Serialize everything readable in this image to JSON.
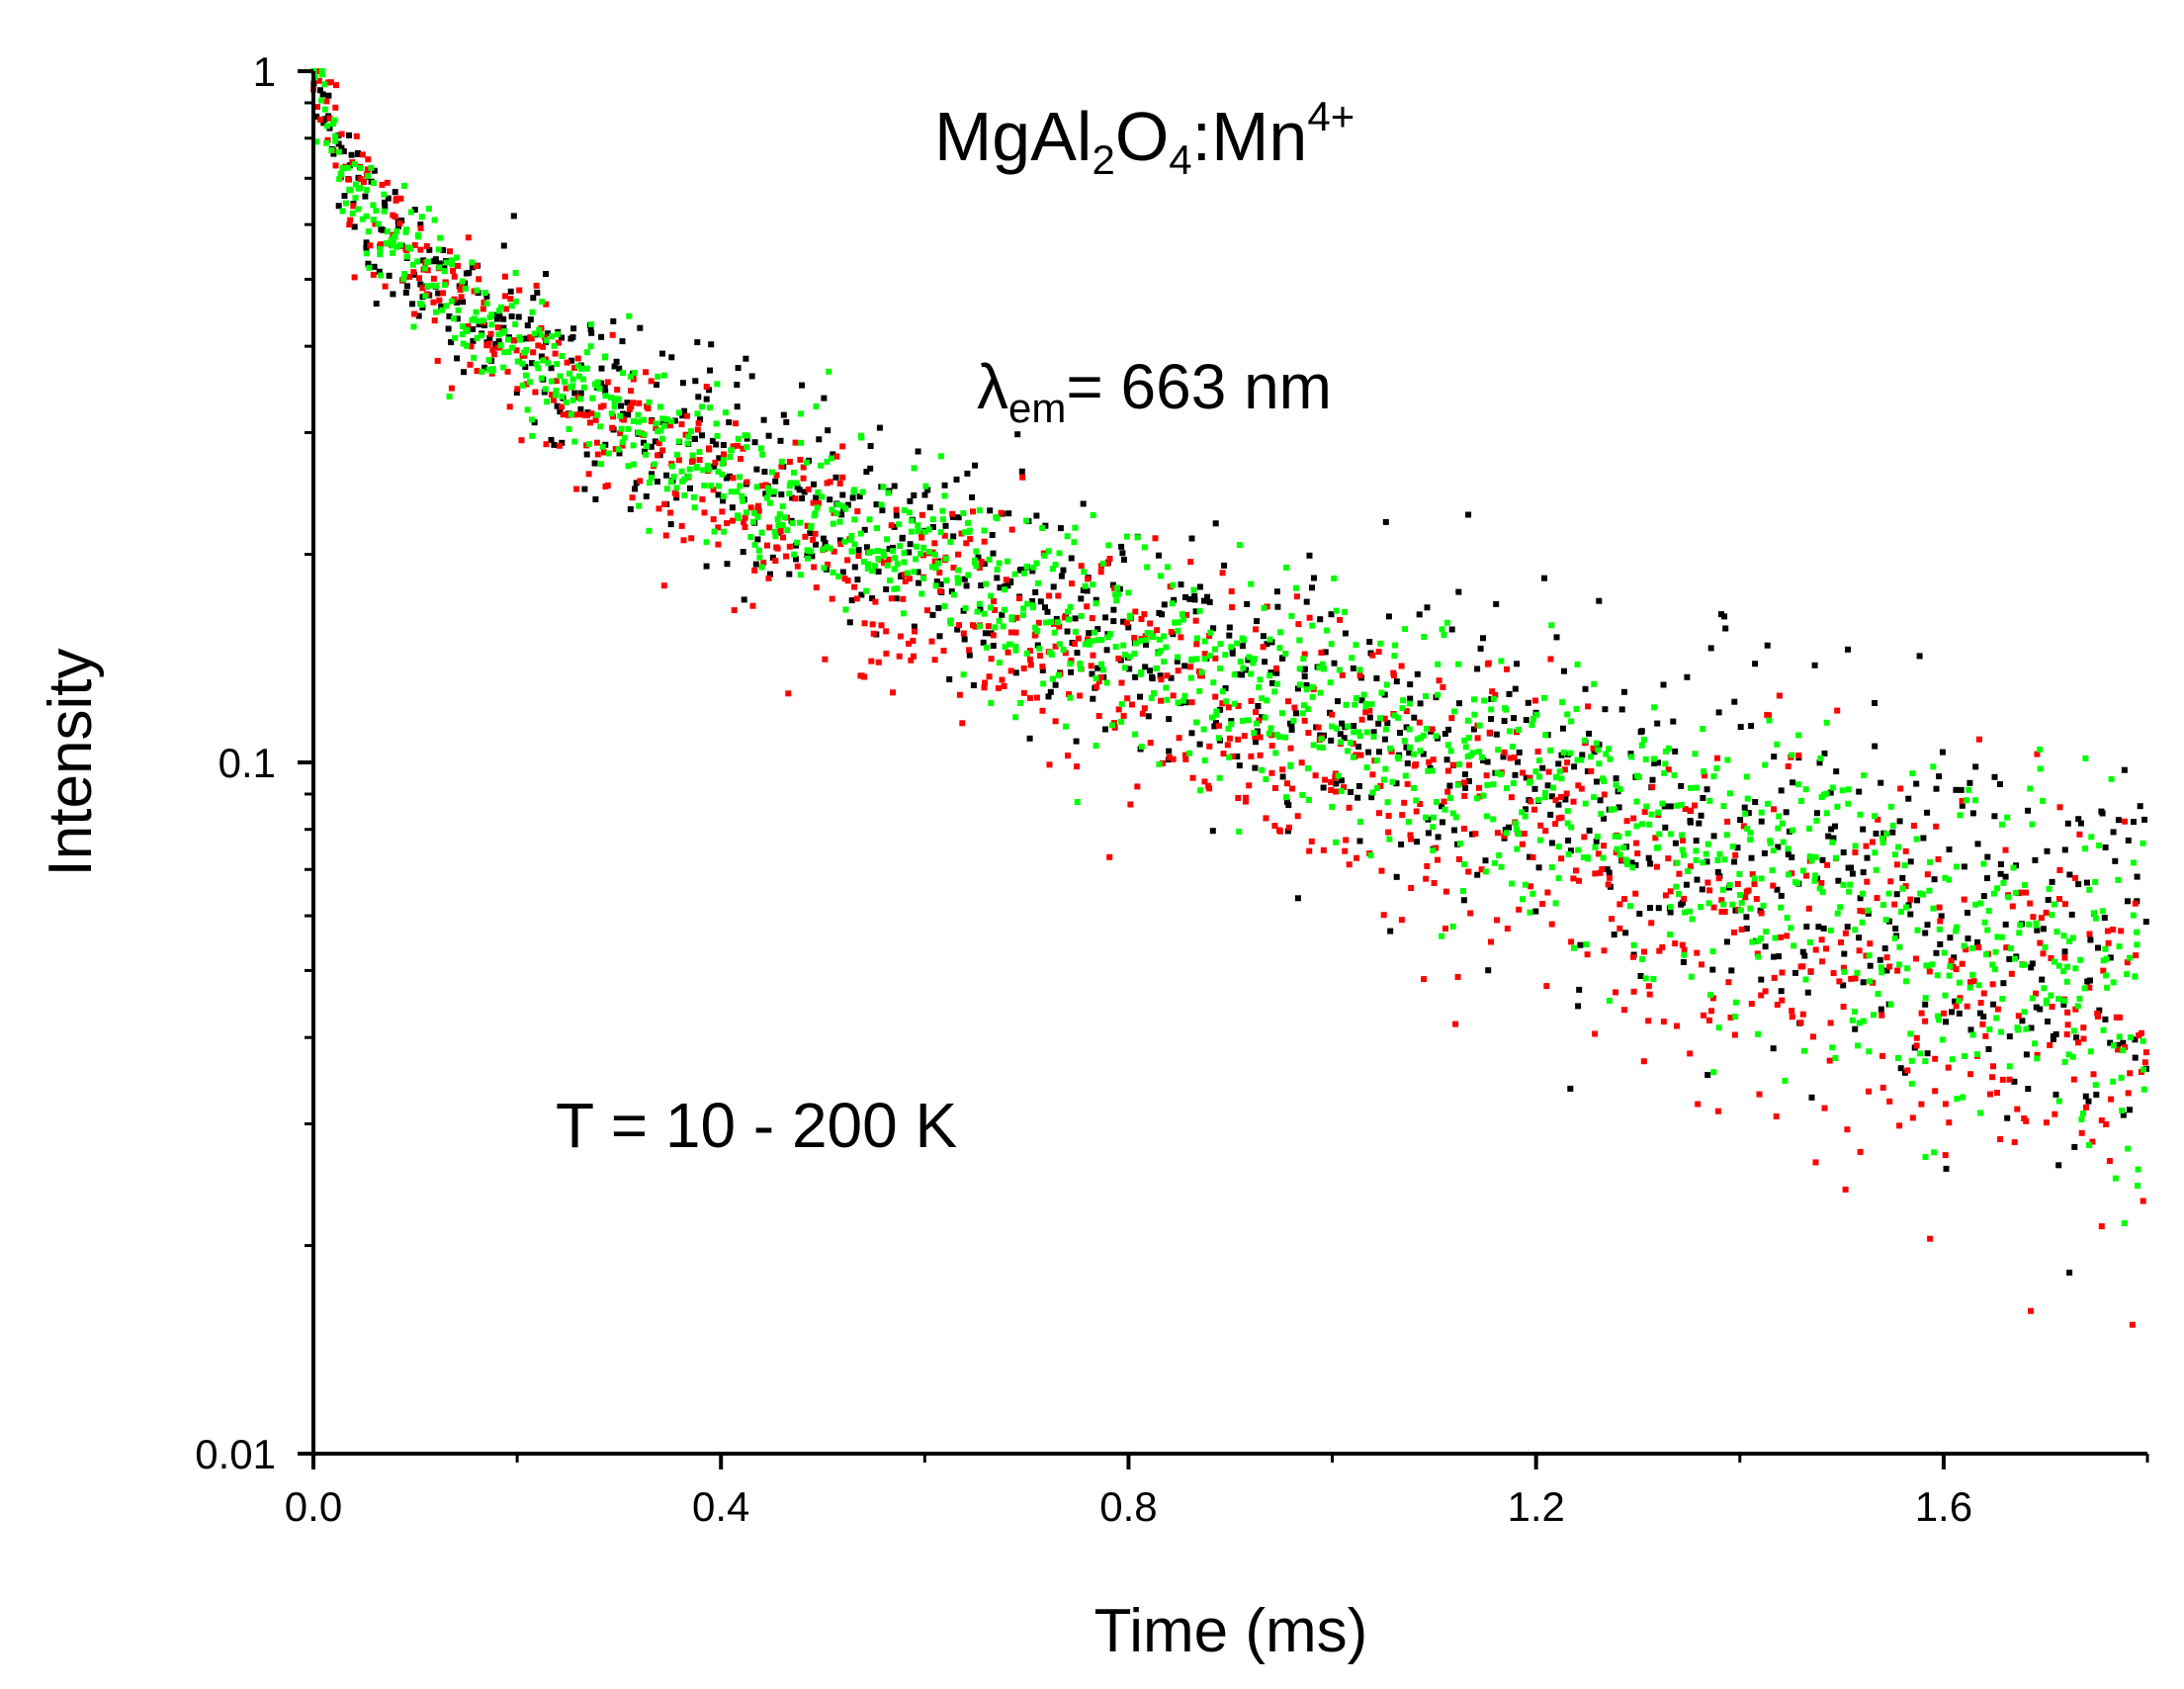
{
  "chart_data": {
    "type": "scatter",
    "title": "MgAl2O4:Mn4+",
    "title_parts": {
      "base1": "MgAl",
      "sub1": "2",
      "base2": "O",
      "sub2": "4",
      "base3": ":Mn",
      "sup": "4+"
    },
    "xlabel": "Time (ms)",
    "ylabel": "Intensity",
    "xlim": [
      0,
      1.8
    ],
    "ylim": [
      0.01,
      1
    ],
    "yscale": "log",
    "x_ticks": [
      {
        "value": 0.0,
        "label": "0.0"
      },
      {
        "value": 0.4,
        "label": "0.4"
      },
      {
        "value": 0.8,
        "label": "0.8"
      },
      {
        "value": 1.2,
        "label": "1.2"
      },
      {
        "value": 1.6,
        "label": "1.6"
      }
    ],
    "x_minor_ticks": [
      0.2,
      0.6,
      1.0,
      1.4,
      1.8
    ],
    "y_ticks": [
      {
        "value": 1,
        "label": "1"
      },
      {
        "value": 0.1,
        "label": "0.1"
      },
      {
        "value": 0.01,
        "label": "0.01"
      }
    ],
    "annotations": {
      "lambda": {
        "symbol": "λ",
        "sub": "em",
        "text": "= 663 nm"
      },
      "temperature": "T = 10 - 200 K"
    },
    "grid": false,
    "legend": "none",
    "series": [
      {
        "name": "black",
        "color": "#000000",
        "points_per_curve": 340,
        "decay": {
          "a1": 0.3,
          "tau1": 0.025,
          "a2": 0.33,
          "tau2": 0.18,
          "a3": 0.37,
          "tau3": 0.88
        },
        "noise_log10_sd": 0.045,
        "noise_growth_log10_per_ms": 0.06,
        "curves_represented": 3
      },
      {
        "name": "red",
        "color": "#ff0000",
        "points_per_curve": 340,
        "decay": {
          "a1": 0.3,
          "tau1": 0.025,
          "a2": 0.34,
          "tau2": 0.17,
          "a3": 0.36,
          "tau3": 0.78
        },
        "noise_log10_sd": 0.045,
        "noise_growth_log10_per_ms": 0.06,
        "curves_represented": 3
      },
      {
        "name": "green",
        "color": "#00ff00",
        "points_per_curve": 340,
        "decay": {
          "a1": 0.3,
          "tau1": 0.025,
          "a2": 0.33,
          "tau2": 0.17,
          "a3": 0.37,
          "tau3": 0.86
        },
        "noise_log10_sd": 0.035,
        "noise_growth_log10_per_ms": 0.05,
        "curves_represented": 4
      }
    ]
  }
}
